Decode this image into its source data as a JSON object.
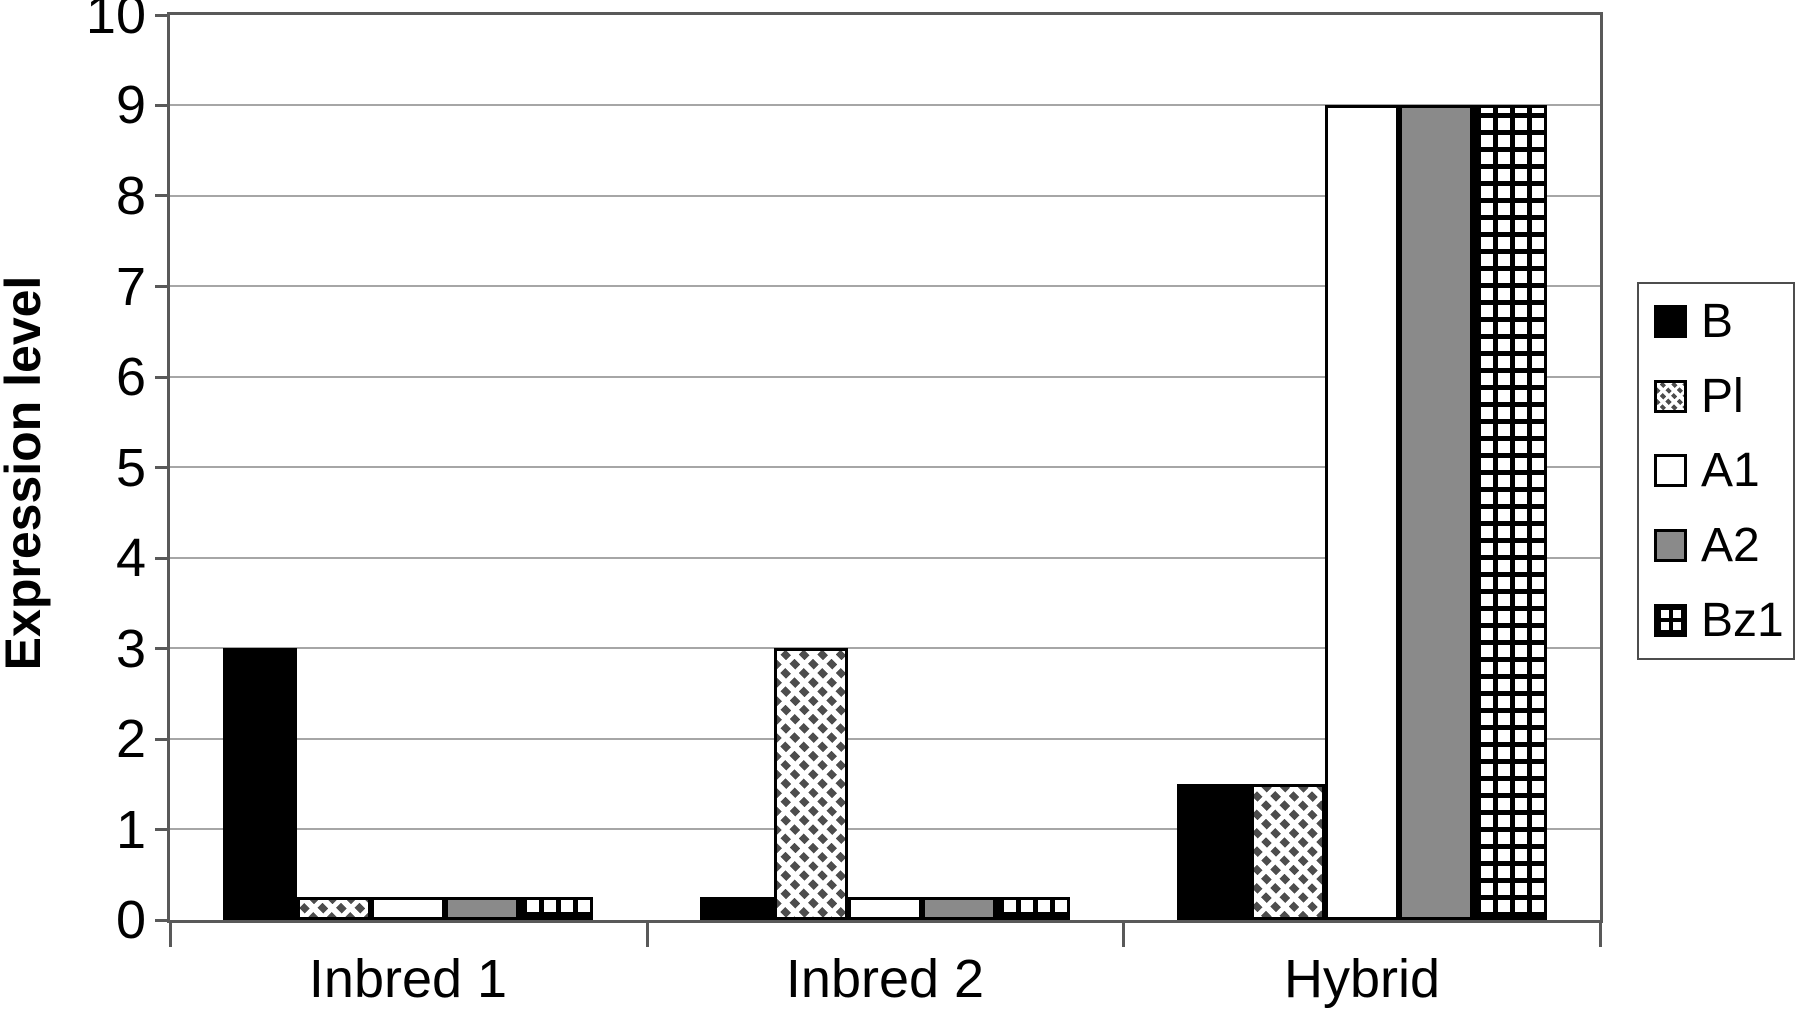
{
  "figure": {
    "background": "#ffffff"
  },
  "chart_data": {
    "type": "bar",
    "title": "",
    "xlabel": "",
    "ylabel": "Expression level",
    "ylim": [
      0,
      10
    ],
    "yticks": [
      0,
      1,
      2,
      3,
      4,
      5,
      6,
      7,
      8,
      9,
      10
    ],
    "grid": true,
    "legend_position": "right",
    "categories": [
      "Inbred 1",
      "Inbred 2",
      "Hybrid"
    ],
    "series": [
      {
        "name": "B",
        "pattern": "solid-black",
        "values": [
          3,
          0.25,
          1.5
        ]
      },
      {
        "name": "Pl",
        "pattern": "diagonal-dots",
        "values": [
          0.25,
          3,
          1.5
        ]
      },
      {
        "name": "A1",
        "pattern": "solid-white",
        "values": [
          0.25,
          0.25,
          9
        ]
      },
      {
        "name": "A2",
        "pattern": "solid-gray",
        "values": [
          0.25,
          0.25,
          9
        ]
      },
      {
        "name": "Bz1",
        "pattern": "bold-grid",
        "values": [
          0.25,
          0.25,
          9
        ]
      }
    ]
  },
  "colors": {
    "bg": "#ffffff",
    "axis": "#595959",
    "gridline": "#a6a6a6",
    "bar_border": "#000000",
    "gray_fill": "#8a8a8a",
    "hatch_dot": "#4d4d4d",
    "legend_border": "#4d4d4d"
  }
}
